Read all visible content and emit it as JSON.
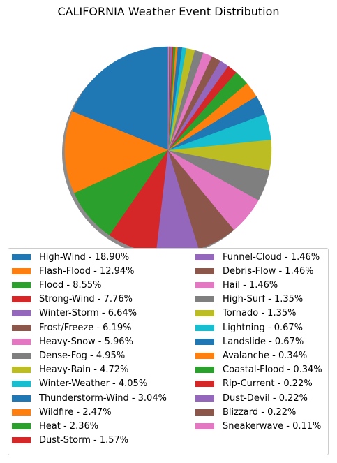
{
  "chart_data": {
    "type": "pie",
    "title": "CALIFORNIA Weather Event Distribution",
    "start_angle_deg": 90,
    "direction": "counterclockwise",
    "shadow": true,
    "legend_placement": "bottom",
    "legend_columns": 2,
    "slices": [
      {
        "label": "High-Wind - 18.90%",
        "value": 18.9,
        "color": "#1f77b4"
      },
      {
        "label": "Flash-Flood - 12.94%",
        "value": 12.94,
        "color": "#ff7f0e"
      },
      {
        "label": "Flood - 8.55%",
        "value": 8.55,
        "color": "#2ca02c"
      },
      {
        "label": "Strong-Wind - 7.76%",
        "value": 7.76,
        "color": "#d62728"
      },
      {
        "label": "Winter-Storm - 6.64%",
        "value": 6.64,
        "color": "#9467bd"
      },
      {
        "label": "Frost/Freeze - 6.19%",
        "value": 6.19,
        "color": "#8c564b"
      },
      {
        "label": "Heavy-Snow - 5.96%",
        "value": 5.96,
        "color": "#e377c2"
      },
      {
        "label": "Dense-Fog - 4.95%",
        "value": 4.95,
        "color": "#7f7f7f"
      },
      {
        "label": "Heavy-Rain - 4.72%",
        "value": 4.72,
        "color": "#bcbd22"
      },
      {
        "label": "Winter-Weather - 4.05%",
        "value": 4.05,
        "color": "#17becf"
      },
      {
        "label": "Thunderstorm-Wind - 3.04%",
        "value": 3.04,
        "color": "#1f77b4"
      },
      {
        "label": "Wildfire - 2.47%",
        "value": 2.47,
        "color": "#ff7f0e"
      },
      {
        "label": "Heat - 2.36%",
        "value": 2.36,
        "color": "#2ca02c"
      },
      {
        "label": "Dust-Storm - 1.57%",
        "value": 1.57,
        "color": "#d62728"
      },
      {
        "label": "Funnel-Cloud - 1.46%",
        "value": 1.46,
        "color": "#9467bd"
      },
      {
        "label": "Debris-Flow - 1.46%",
        "value": 1.46,
        "color": "#8c564b"
      },
      {
        "label": "Hail - 1.46%",
        "value": 1.46,
        "color": "#e377c2"
      },
      {
        "label": "High-Surf - 1.35%",
        "value": 1.35,
        "color": "#7f7f7f"
      },
      {
        "label": "Tornado - 1.35%",
        "value": 1.35,
        "color": "#bcbd22"
      },
      {
        "label": "Lightning - 0.67%",
        "value": 0.67,
        "color": "#17becf"
      },
      {
        "label": "Landslide - 0.67%",
        "value": 0.67,
        "color": "#1f77b4"
      },
      {
        "label": "Avalanche - 0.34%",
        "value": 0.34,
        "color": "#ff7f0e"
      },
      {
        "label": "Coastal-Flood - 0.34%",
        "value": 0.34,
        "color": "#2ca02c"
      },
      {
        "label": "Rip-Current - 0.22%",
        "value": 0.22,
        "color": "#d62728"
      },
      {
        "label": "Dust-Devil - 0.22%",
        "value": 0.22,
        "color": "#9467bd"
      },
      {
        "label": "Blizzard - 0.22%",
        "value": 0.22,
        "color": "#8c564b"
      },
      {
        "label": "Sneakerwave - 0.11%",
        "value": 0.11,
        "color": "#e377c2"
      }
    ]
  }
}
